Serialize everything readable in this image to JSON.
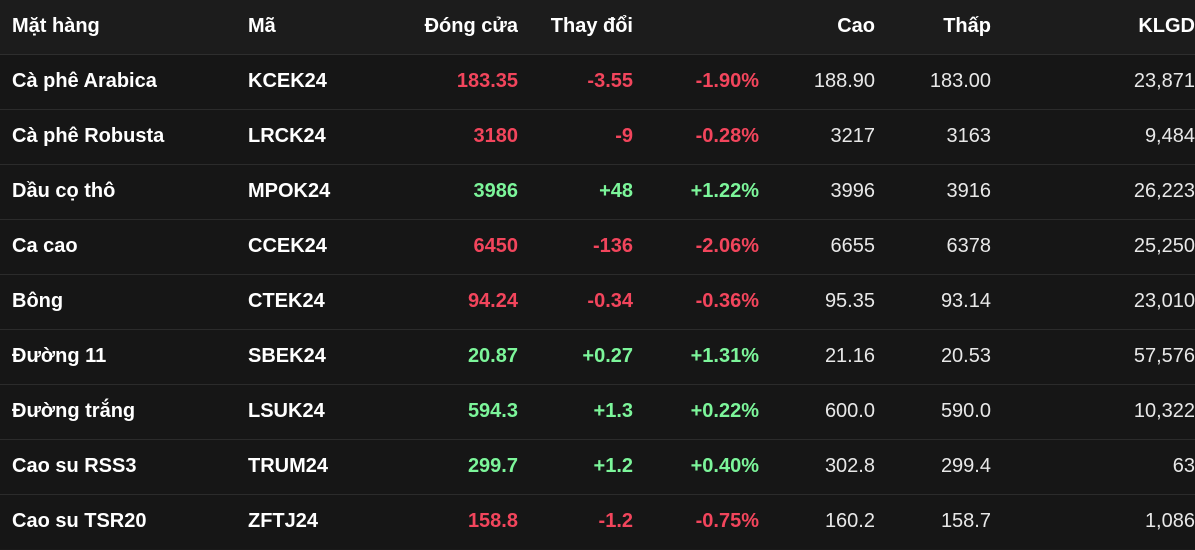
{
  "colors": {
    "up": "#7cf59a",
    "down": "#f2455c",
    "text": "#ffffff",
    "background": "#1a1a1a"
  },
  "table": {
    "headers": {
      "name": "Mặt hàng",
      "symbol": "Mã",
      "close": "Đóng cửa",
      "change": "Thay đổi",
      "high": "Cao",
      "low": "Thấp",
      "volume": "KLGD"
    },
    "rows": [
      {
        "name": "Cà phê Arabica",
        "symbol": "KCEK24",
        "close": "183.35",
        "change": "-3.55",
        "change_pct": "-1.90%",
        "high": "188.90",
        "low": "183.00",
        "volume": "23,871",
        "direction": "down"
      },
      {
        "name": "Cà phê Robusta",
        "symbol": "LRCK24",
        "close": "3180",
        "change": "-9",
        "change_pct": "-0.28%",
        "high": "3217",
        "low": "3163",
        "volume": "9,484",
        "direction": "down"
      },
      {
        "name": "Dầu cọ thô",
        "symbol": "MPOK24",
        "close": "3986",
        "change": "+48",
        "change_pct": "+1.22%",
        "high": "3996",
        "low": "3916",
        "volume": "26,223",
        "direction": "up"
      },
      {
        "name": "Ca cao",
        "symbol": "CCEK24",
        "close": "6450",
        "change": "-136",
        "change_pct": "-2.06%",
        "high": "6655",
        "low": "6378",
        "volume": "25,250",
        "direction": "down"
      },
      {
        "name": "Bông",
        "symbol": "CTEK24",
        "close": "94.24",
        "change": "-0.34",
        "change_pct": "-0.36%",
        "high": "95.35",
        "low": "93.14",
        "volume": "23,010",
        "direction": "down"
      },
      {
        "name": "Đường 11",
        "symbol": "SBEK24",
        "close": "20.87",
        "change": "+0.27",
        "change_pct": "+1.31%",
        "high": "21.16",
        "low": "20.53",
        "volume": "57,576",
        "direction": "up"
      },
      {
        "name": "Đường trắng",
        "symbol": "LSUK24",
        "close": "594.3",
        "change": "+1.3",
        "change_pct": "+0.22%",
        "high": "600.0",
        "low": "590.0",
        "volume": "10,322",
        "direction": "up"
      },
      {
        "name": "Cao su RSS3",
        "symbol": "TRUM24",
        "close": "299.7",
        "change": "+1.2",
        "change_pct": "+0.40%",
        "high": "302.8",
        "low": "299.4",
        "volume": "63",
        "direction": "up"
      },
      {
        "name": "Cao su TSR20",
        "symbol": "ZFTJ24",
        "close": "158.8",
        "change": "-1.2",
        "change_pct": "-0.75%",
        "high": "160.2",
        "low": "158.7",
        "volume": "1,086",
        "direction": "down"
      }
    ]
  }
}
